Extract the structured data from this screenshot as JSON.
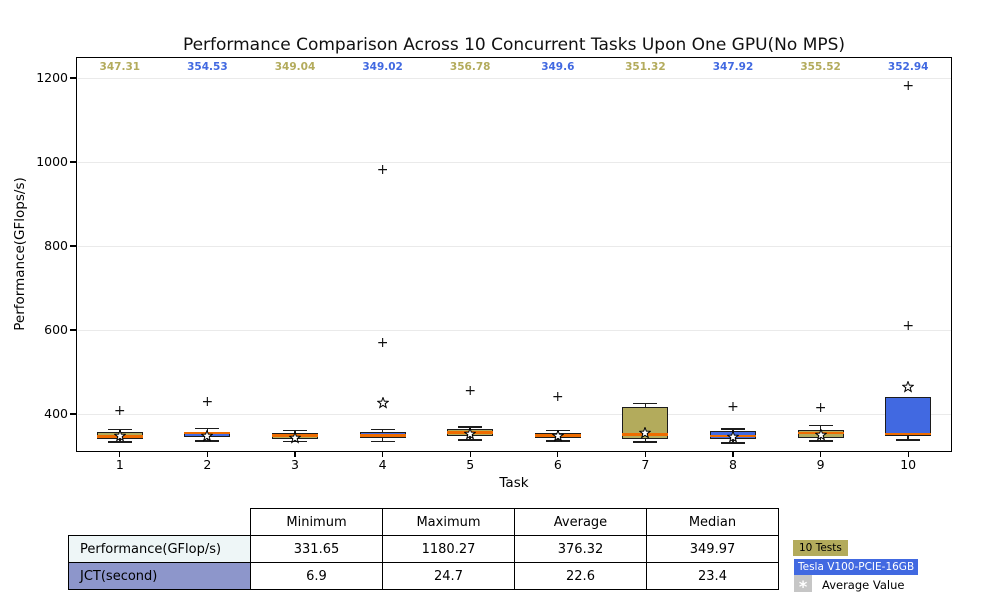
{
  "chart_data": {
    "type": "box",
    "title": "Performance Comparison Across 10 Concurrent Tasks Upon One GPU(No MPS)",
    "xlabel": "Task",
    "ylabel": "Performance(GFlops/s)",
    "ylim": [
      310,
      1250
    ],
    "yticks": [
      400,
      600,
      800,
      1000,
      1200
    ],
    "grid": "horizontal-light",
    "categories": [
      "1",
      "2",
      "3",
      "4",
      "5",
      "6",
      "7",
      "8",
      "9",
      "10"
    ],
    "median_labels": [
      "347.31",
      "354.53",
      "349.04",
      "349.02",
      "356.78",
      "349.6",
      "351.32",
      "347.92",
      "355.52",
      "352.94"
    ],
    "series": [
      {
        "task": "1",
        "color": "olive",
        "whisker_low": 334,
        "q1": 341,
        "median": 347.31,
        "q3": 357,
        "whisker_high": 363,
        "mean": 356,
        "fliers": [
          407
        ]
      },
      {
        "task": "2",
        "color": "blue",
        "whisker_low": 336,
        "q1": 345,
        "median": 354.53,
        "q3": 358,
        "whisker_high": 366,
        "mean": 356,
        "fliers": [
          430
        ]
      },
      {
        "task": "3",
        "color": "olive",
        "whisker_low": 335,
        "q1": 342,
        "median": 349.04,
        "q3": 355,
        "whisker_high": 361,
        "mean": 351,
        "fliers": []
      },
      {
        "task": "4",
        "color": "blue",
        "whisker_low": 335,
        "q1": 343,
        "median": 349.02,
        "q3": 357,
        "whisker_high": 363,
        "mean": 433,
        "fliers": [
          570,
          980
        ]
      },
      {
        "task": "5",
        "color": "olive",
        "whisker_low": 338,
        "q1": 347,
        "median": 356.78,
        "q3": 364,
        "whisker_high": 370,
        "mean": 361,
        "fliers": [
          456
        ]
      },
      {
        "task": "6",
        "color": "blue",
        "whisker_low": 336,
        "q1": 344,
        "median": 349.6,
        "q3": 356,
        "whisker_high": 361,
        "mean": 355,
        "fliers": [
          442
        ]
      },
      {
        "task": "7",
        "color": "olive",
        "whisker_low": 334,
        "q1": 341,
        "median": 351.32,
        "q3": 416,
        "whisker_high": 426,
        "mean": 363,
        "fliers": []
      },
      {
        "task": "8",
        "color": "blue",
        "whisker_low": 331.65,
        "q1": 340,
        "median": 347.92,
        "q3": 360,
        "whisker_high": 365,
        "mean": 353,
        "fliers": [
          416
        ]
      },
      {
        "task": "9",
        "color": "olive",
        "whisker_low": 336,
        "q1": 344,
        "median": 355.52,
        "q3": 363,
        "whisker_high": 373,
        "mean": 357,
        "fliers": [
          414
        ]
      },
      {
        "task": "10",
        "color": "blue",
        "whisker_low": 338,
        "q1": 348,
        "median": 352.94,
        "q3": 440,
        "whisker_high": 440,
        "mean": 473,
        "fliers": [
          610,
          1180.27
        ]
      }
    ],
    "colors": {
      "olive": "#b3ab5c",
      "blue": "#4169e1",
      "median_line": "#ee6c00",
      "annotation_olive": "#b3ab5c",
      "annotation_blue": "#4169e1",
      "grid": "#eaeaea",
      "mean_marker_fill": "#ffffff",
      "mean_marker_edge": "#000000"
    }
  },
  "stats_table": {
    "columns": [
      "Minimum",
      "Maximum",
      "Average",
      "Median"
    ],
    "rows": [
      {
        "label": "Performance(GFlop/s)",
        "label_bg": "#eef6f7",
        "values": [
          "331.65",
          "1180.27",
          "376.32",
          "349.97"
        ]
      },
      {
        "label": "JCT(second)",
        "label_bg": "#8d96cb",
        "values": [
          "6.9",
          "24.7",
          "22.6",
          "23.4"
        ]
      }
    ]
  },
  "legend": {
    "items": [
      {
        "label": "10 Tests",
        "bg": "#b3ab5c",
        "text_color": "#000000"
      },
      {
        "label": "Tesla V100-PCIE-16GB",
        "bg": "#4169e1",
        "text_color": "#ffffff"
      },
      {
        "label": "Average Value",
        "marker": "*",
        "marker_bg": "#c6c6c6",
        "text_color": "#000000"
      }
    ]
  }
}
